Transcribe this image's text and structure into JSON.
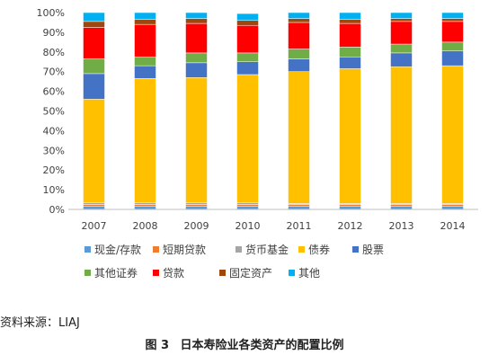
{
  "chart_data": {
    "type": "bar",
    "stacked": true,
    "categories": [
      "2007",
      "2008",
      "2009",
      "2010",
      "2011",
      "2012",
      "2013",
      "2014"
    ],
    "y_ticks": [
      "0%",
      "10%",
      "20%",
      "30%",
      "40%",
      "50%",
      "60%",
      "70%",
      "80%",
      "90%",
      "100%"
    ],
    "ylim": [
      0,
      100
    ],
    "grid": false,
    "legend_position": "bottom",
    "series": [
      {
        "name": "现金/存款",
        "color": "#5B9BD5",
        "values": [
          1.5,
          1.5,
          1.5,
          1.5,
          1.5,
          1.5,
          1.5,
          1.5
        ]
      },
      {
        "name": "短期贷款",
        "color": "#ED7D31",
        "values": [
          1.0,
          1.0,
          1.0,
          1.0,
          1.0,
          1.0,
          1.0,
          1.0
        ]
      },
      {
        "name": "货币基金",
        "color": "#A5A5A5",
        "values": [
          1.0,
          1.0,
          1.0,
          1.0,
          0.5,
          0.5,
          0.5,
          0.5
        ]
      },
      {
        "name": "债券",
        "color": "#FFC000",
        "values": [
          52.5,
          63.0,
          63.5,
          65.0,
          67.0,
          68.5,
          69.5,
          70.0
        ]
      },
      {
        "name": "股票",
        "color": "#4472C4",
        "values": [
          13.0,
          6.5,
          7.5,
          6.5,
          6.5,
          6.0,
          7.0,
          7.5
        ]
      },
      {
        "name": "其他证券",
        "color": "#70AD47",
        "values": [
          7.5,
          4.5,
          5.0,
          4.5,
          5.0,
          5.0,
          4.5,
          4.5
        ]
      },
      {
        "name": "贷款",
        "color": "#FF0000",
        "values": [
          16.0,
          16.5,
          15.0,
          14.0,
          13.5,
          12.0,
          11.5,
          10.5
        ]
      },
      {
        "name": "固定资产",
        "color": "#9E480E",
        "values": [
          3.0,
          2.5,
          2.5,
          2.5,
          2.0,
          2.0,
          1.5,
          1.5
        ]
      },
      {
        "name": "其他",
        "color": "#00B0F0",
        "values": [
          4.5,
          3.5,
          3.0,
          3.5,
          3.0,
          3.5,
          3.0,
          3.0
        ]
      }
    ]
  },
  "source_text": "资料来源：LIAJ",
  "caption": {
    "figure_label": "图 3",
    "title": "日本寿险业各类资产的配置比例"
  }
}
